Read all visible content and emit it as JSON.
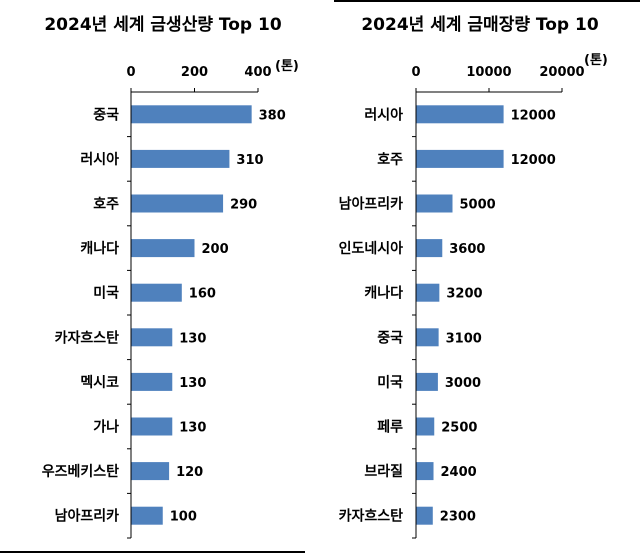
{
  "chart_data": [
    {
      "type": "bar",
      "orientation": "horizontal",
      "title": "2024년 세계 금생산량 Top 10",
      "unit": "(톤)",
      "categories": [
        "중국",
        "러시아",
        "호주",
        "캐나다",
        "미국",
        "카자흐스탄",
        "멕시코",
        "가나",
        "우즈베키스탄",
        "남아프리카"
      ],
      "values": [
        380,
        310,
        290,
        200,
        160,
        130,
        130,
        130,
        120,
        100
      ],
      "xlim": [
        0,
        400
      ],
      "ticks": [
        0,
        200,
        400
      ],
      "tick_labels": [
        "0",
        "200",
        "400"
      ],
      "value_labels": [
        "380",
        "310",
        "290",
        "200",
        "160",
        "130",
        "130",
        "130",
        "120",
        "100"
      ],
      "grid": false,
      "color": "#4f81bd"
    },
    {
      "type": "bar",
      "orientation": "horizontal",
      "title": "2024년 세계 금매장량 Top 10",
      "unit": "(톤)",
      "categories": [
        "러시아",
        "호주",
        "남아프리카",
        "인도네시아",
        "캐나다",
        "중국",
        "미국",
        "페루",
        "브라질",
        "카자흐스탄"
      ],
      "values": [
        12000,
        12000,
        5000,
        3600,
        3200,
        3100,
        3000,
        2500,
        2400,
        2300
      ],
      "xlim": [
        0,
        20000
      ],
      "ticks": [
        0,
        10000,
        20000
      ],
      "tick_labels": [
        "0",
        "10000",
        "20000"
      ],
      "value_labels": [
        "12000",
        "12000",
        "5000",
        "3600",
        "3200",
        "3100",
        "3000",
        "2500",
        "2400",
        "2300"
      ],
      "grid": false,
      "color": "#4f81bd"
    }
  ]
}
